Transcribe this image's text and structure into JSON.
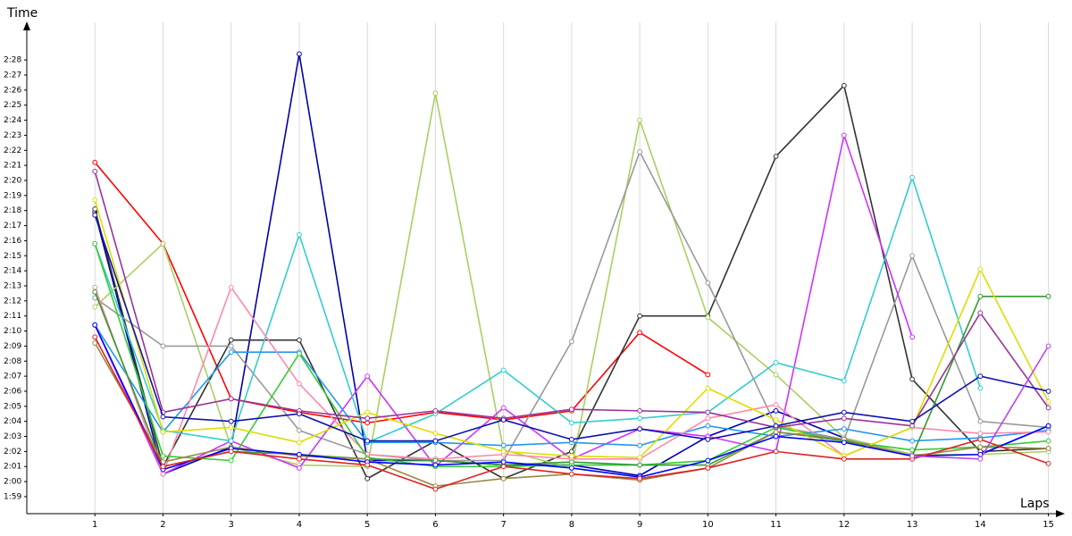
{
  "chart_data": {
    "type": "line",
    "y_label": "Time",
    "x_label": "Laps",
    "x": [
      1,
      2,
      3,
      4,
      5,
      6,
      7,
      8,
      9,
      10,
      11,
      12,
      13,
      14,
      15
    ],
    "xlim": [
      0,
      15.15
    ],
    "xticks": [
      1,
      2,
      3,
      4,
      5,
      6,
      7,
      8,
      9,
      10,
      11,
      12,
      13,
      14,
      15
    ],
    "ylim": [
      117.87,
      150.5
    ],
    "yticks": [
      {
        "value": 119,
        "label": "1:59"
      },
      {
        "value": 120,
        "label": "2:00"
      },
      {
        "value": 121,
        "label": "2:01"
      },
      {
        "value": 122,
        "label": "2:02"
      },
      {
        "value": 123,
        "label": "2:03"
      },
      {
        "value": 124,
        "label": "2:04"
      },
      {
        "value": 125,
        "label": "2:05"
      },
      {
        "value": 126,
        "label": "2:06"
      },
      {
        "value": 127,
        "label": "2:07"
      },
      {
        "value": 128,
        "label": "2:08"
      },
      {
        "value": 129,
        "label": "2:09"
      },
      {
        "value": 130,
        "label": "2:10"
      },
      {
        "value": 131,
        "label": "2:11"
      },
      {
        "value": 132,
        "label": "2:12"
      },
      {
        "value": 133,
        "label": "2:13"
      },
      {
        "value": 134,
        "label": "2:14"
      },
      {
        "value": 135,
        "label": "2:15"
      },
      {
        "value": 136,
        "label": "2:16"
      },
      {
        "value": 137,
        "label": "2:17"
      },
      {
        "value": 138,
        "label": "2:18"
      },
      {
        "value": 139,
        "label": "2:19"
      },
      {
        "value": 140,
        "label": "2:20"
      },
      {
        "value": 141,
        "label": "2:21"
      },
      {
        "value": 142,
        "label": "2:22"
      },
      {
        "value": 143,
        "label": "2:23"
      },
      {
        "value": 144,
        "label": "2:24"
      },
      {
        "value": 145,
        "label": "2:25"
      },
      {
        "value": 146,
        "label": "2:26"
      },
      {
        "value": 147,
        "label": "2:27"
      },
      {
        "value": 148,
        "label": "2:28"
      }
    ],
    "grid": "x",
    "series": [
      {
        "color": "#ff0000",
        "values": [
          141.2,
          135.8,
          125.5,
          124.6,
          123.9,
          124.6,
          124.1,
          124.7,
          129.9,
          127.1,
          null,
          null,
          null,
          null,
          null
        ]
      },
      {
        "color": "#0000aa",
        "values": [
          137.9,
          120.5,
          122.3,
          148.4,
          121.4,
          121.4,
          121.1,
          121.1,
          120.4,
          123.0,
          124.7,
          122.9,
          121.8,
          121.8,
          123.7
        ]
      },
      {
        "color": "#333333",
        "values": [
          138.1,
          121.0,
          129.4,
          129.4,
          120.2,
          122.7,
          120.2,
          122.0,
          131.0,
          131.0,
          141.6,
          146.3,
          126.8,
          122.0,
          122.2
        ]
      },
      {
        "color": "#a8d060",
        "values": [
          131.6,
          135.8,
          122.3,
          121.1,
          121.0,
          145.8,
          122.1,
          120.9,
          144.0,
          130.9,
          127.1,
          122.9,
          121.8,
          121.8,
          122.0
        ]
      },
      {
        "color": "#999999",
        "values": [
          132.2,
          129.0,
          129.0,
          123.4,
          121.8,
          121.4,
          121.4,
          129.3,
          141.9,
          133.2,
          123.7,
          122.8,
          135.0,
          124.0,
          123.6
        ]
      },
      {
        "color": "#cc33ff",
        "values": [
          130.4,
          120.5,
          122.7,
          120.9,
          127.0,
          121.0,
          124.9,
          121.5,
          123.5,
          123.0,
          122.0,
          143.0,
          129.6,
          null,
          null
        ]
      },
      {
        "color": "#33cccc",
        "values": [
          135.8,
          123.4,
          122.7,
          136.4,
          122.6,
          124.5,
          127.4,
          123.9,
          124.2,
          124.6,
          127.9,
          126.7,
          140.2,
          126.2,
          null
        ]
      },
      {
        "color": "#2299ee",
        "values": [
          130.4,
          123.3,
          128.6,
          128.6,
          122.6,
          122.6,
          122.4,
          122.6,
          122.4,
          123.7,
          123.0,
          123.5,
          122.7,
          122.9,
          123.4
        ]
      },
      {
        "color": "#ff88aa",
        "values": [
          132.9,
          120.5,
          132.9,
          126.5,
          121.8,
          121.5,
          121.8,
          121.5,
          121.5,
          124.2,
          125.1,
          121.7,
          123.6,
          123.2,
          123.3
        ]
      },
      {
        "color": "#33cc33",
        "values": [
          135.8,
          121.7,
          121.4,
          128.5,
          121.6,
          121.0,
          121.0,
          121.1,
          121.1,
          121.4,
          123.6,
          122.7,
          122.1,
          122.3,
          122.7
        ]
      },
      {
        "color": "#339933",
        "values": [
          132.6,
          121.0,
          122.0,
          121.8,
          121.5,
          121.4,
          121.1,
          121.3,
          121.1,
          121.1,
          123.3,
          122.7,
          121.7,
          132.3,
          132.3
        ]
      },
      {
        "color": "#dddd00",
        "values": [
          138.7,
          123.3,
          123.6,
          122.6,
          124.6,
          123.2,
          122.0,
          121.7,
          121.6,
          126.2,
          124.1,
          121.7,
          123.6,
          134.1,
          125.3
        ]
      },
      {
        "color": "#993399",
        "values": [
          140.6,
          124.6,
          125.5,
          124.7,
          124.2,
          124.7,
          124.2,
          124.8,
          124.7,
          124.6,
          123.6,
          124.2,
          123.7,
          131.2,
          124.9
        ]
      },
      {
        "color": "#998844",
        "values": [
          129.2,
          121.3,
          122.3,
          121.7,
          121.5,
          119.7,
          120.2,
          120.5,
          120.1,
          120.9,
          123.3,
          122.8,
          121.7,
          122.3,
          122.2
        ]
      },
      {
        "color": "#0000ff",
        "values": [
          130.4,
          120.8,
          122.2,
          121.8,
          121.3,
          121.1,
          121.3,
          120.9,
          120.3,
          121.4,
          123.0,
          122.6,
          121.7,
          121.8,
          123.7
        ]
      },
      {
        "color": "#1111aa",
        "values": [
          137.7,
          124.3,
          124.0,
          124.5,
          122.7,
          122.7,
          124.1,
          122.8,
          123.5,
          122.8,
          123.7,
          124.6,
          124.0,
          127.0,
          126.0
        ]
      },
      {
        "color": "#dd2222",
        "values": [
          129.6,
          121.0,
          122.0,
          121.5,
          121.1,
          119.5,
          121.0,
          120.5,
          120.2,
          120.9,
          122.0,
          121.5,
          121.5,
          122.8,
          121.2
        ]
      },
      {
        "color": "#bb44ee",
        "values": [
          null,
          null,
          null,
          null,
          null,
          null,
          null,
          null,
          null,
          null,
          null,
          null,
          121.7,
          121.5,
          129.0
        ]
      }
    ]
  }
}
